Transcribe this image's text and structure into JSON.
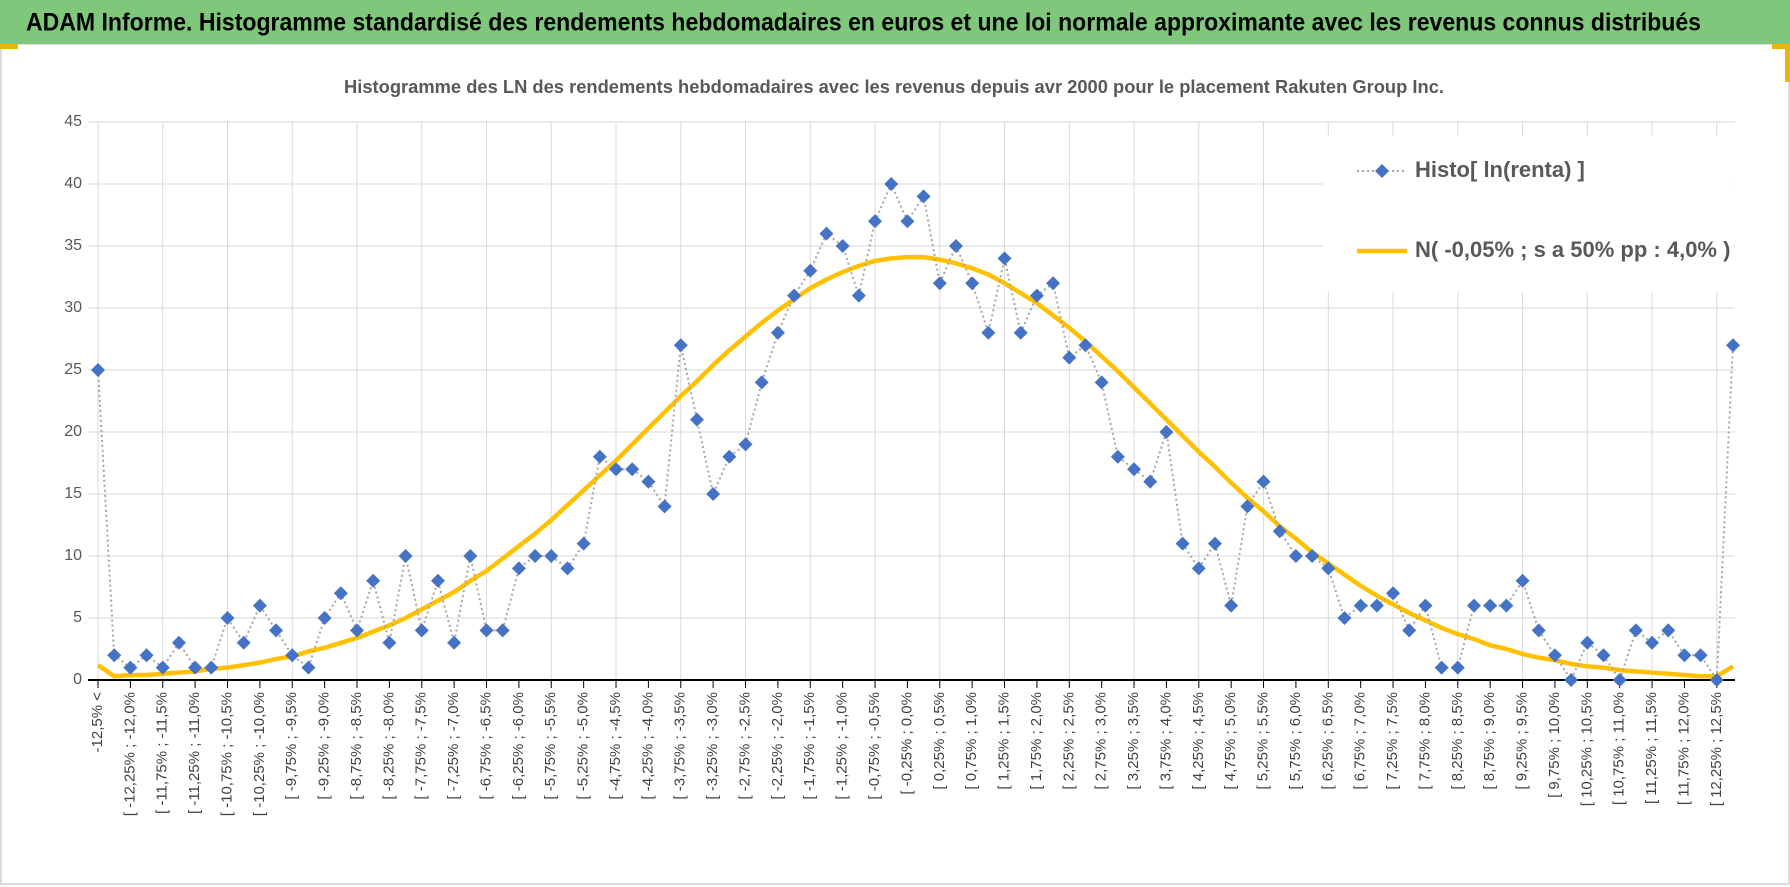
{
  "header": {
    "title": "ADAM Informe. Histogramme standardisé des rendements hebdomadaires en euros et une loi normale approximante avec les revenus connus distribués"
  },
  "chart_data": {
    "type": "line",
    "title": "Histogramme des LN des rendements hebdomadaires avec les revenus depuis avr 2000 pour le placement Rakuten Group Inc.",
    "categories": [
      "-12,5% <",
      null,
      "[ -12,25% ; -12,0%",
      null,
      "[ -11,75% ; -11,5%",
      null,
      "[ -11,25% ; -11,0%",
      null,
      "[ -10,75% ; -10,5%",
      null,
      "[ -10,25% ; -10,0%",
      null,
      "[ -9,75% ; -9,5%",
      null,
      "[ -9,25% ; -9,0%",
      null,
      "[ -8,75% ; -8,5%",
      null,
      "[ -8,25% ; -8,0%",
      null,
      "[ -7,75% ; -7,5%",
      null,
      "[ -7,25% ; -7,0%",
      null,
      "[ -6,75% ; -6,5%",
      null,
      "[ -6,25% ; -6,0%",
      null,
      "[ -5,75% ; -5,5%",
      null,
      "[ -5,25% ; -5,0%",
      null,
      "[ -4,75% ; -4,5%",
      null,
      "[ -4,25% ; -4,0%",
      null,
      "[ -3,75% ; -3,5%",
      null,
      "[ -3,25% ; -3,0%",
      null,
      "[ -2,75% ; -2,5%",
      null,
      "[ -2,25% ; -2,0%",
      null,
      "[ -1,75% ; -1,5%",
      null,
      "[ -1,25% ; -1,0%",
      null,
      "[ -0,75% ; -0,5%",
      null,
      "[ -0,25% ; 0,0%",
      null,
      "[ 0,25% ; 0,5%",
      null,
      "[ 0,75% ; 1,0%",
      null,
      "[ 1,25% ; 1,5%",
      null,
      "[ 1,75% ; 2,0%",
      null,
      "[ 2,25% ; 2,5%",
      null,
      "[ 2,75% ; 3,0%",
      null,
      "[ 3,25% ; 3,5%",
      null,
      "[ 3,75% ; 4,0%",
      null,
      "[ 4,25% ; 4,5%",
      null,
      "[ 4,75% ; 5,0%",
      null,
      "[ 5,25% ; 5,5%",
      null,
      "[ 5,75% ; 6,0%",
      null,
      "[ 6,25% ; 6,5%",
      null,
      "[ 6,75% ; 7,0%",
      null,
      "[ 7,25% ; 7,5%",
      null,
      "[ 7,75% ; 8,0%",
      null,
      "[ 8,25% ; 8,5%",
      null,
      "[ 8,75% ; 9,0%",
      null,
      "[ 9,25% ; 9,5%",
      null,
      "[ 9,75% ; 10,0%",
      null,
      "[ 10,25% ; 10,5%",
      null,
      "[ 10,75% ; 11,0%",
      null,
      "[ 11,25% ; 11,5%",
      null,
      "[ 11,75% ; 12,0%",
      null,
      "[ 12,25% ; 12,5%",
      null
    ],
    "series": [
      {
        "name": "Histo[ ln(renta) ]",
        "color": "#4472c4",
        "line_color": "#a6a6a6",
        "line_style": "dotted",
        "marker": "diamond",
        "values": [
          25,
          2,
          1,
          2,
          1,
          3,
          1,
          1,
          5,
          3,
          6,
          4,
          2,
          1,
          5,
          7,
          4,
          8,
          3,
          10,
          4,
          8,
          3,
          10,
          4,
          4,
          9,
          10,
          10,
          9,
          11,
          18,
          17,
          17,
          16,
          14,
          27,
          21,
          15,
          18,
          19,
          24,
          28,
          31,
          33,
          36,
          35,
          31,
          37,
          40,
          37,
          39,
          32,
          35,
          32,
          28,
          34,
          28,
          31,
          32,
          26,
          27,
          24,
          18,
          17,
          16,
          20,
          11,
          9,
          11,
          6,
          14,
          16,
          12,
          10,
          10,
          9,
          5,
          6,
          6,
          7,
          4,
          6,
          1,
          1,
          6,
          6,
          6,
          8,
          4,
          2,
          0,
          3,
          2,
          0,
          4,
          3,
          4,
          2,
          2,
          0,
          27
        ]
      },
      {
        "name": "N( -0,05% ; s a 50% pp : 4,0% )",
        "color": "#ffc000",
        "line_style": "solid",
        "marker": "none",
        "values": [
          1.2,
          0.3,
          0.4,
          0.4,
          0.5,
          0.6,
          0.7,
          0.9,
          1.0,
          1.2,
          1.4,
          1.7,
          1.9,
          2.3,
          2.6,
          3.0,
          3.4,
          3.9,
          4.4,
          5.0,
          5.7,
          6.4,
          7.1,
          8.0,
          8.8,
          9.8,
          10.8,
          11.8,
          12.9,
          14.1,
          15.3,
          16.5,
          17.7,
          19.0,
          20.3,
          21.6,
          22.9,
          24.1,
          25.4,
          26.6,
          27.7,
          28.8,
          29.8,
          30.7,
          31.6,
          32.3,
          32.9,
          33.4,
          33.8,
          34.0,
          34.1,
          34.1,
          33.9,
          33.6,
          33.2,
          32.7,
          32.0,
          31.2,
          30.4,
          29.4,
          28.4,
          27.3,
          26.1,
          24.9,
          23.6,
          22.3,
          21.0,
          19.7,
          18.4,
          17.2,
          15.9,
          14.7,
          13.6,
          12.4,
          11.4,
          10.3,
          9.4,
          8.5,
          7.6,
          6.8,
          6.1,
          5.4,
          4.8,
          4.2,
          3.7,
          3.3,
          2.8,
          2.5,
          2.1,
          1.8,
          1.6,
          1.3,
          1.1,
          1.0,
          0.8,
          0.7,
          0.6,
          0.5,
          0.4,
          0.3,
          0.3,
          1.1
        ]
      }
    ],
    "ylim": [
      0,
      45
    ],
    "yticks": [
      0,
      5,
      10,
      15,
      20,
      25,
      30,
      35,
      40,
      45
    ],
    "grid": true,
    "legend": "upper right"
  }
}
